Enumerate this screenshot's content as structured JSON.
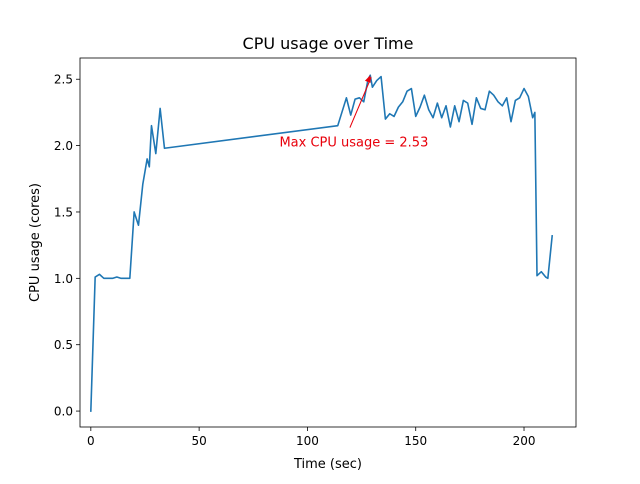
{
  "chart_data": {
    "type": "line",
    "title": "CPU usage over Time",
    "xlabel": "Time (sec)",
    "ylabel": "CPU usage (cores)",
    "xlim": [
      -5,
      224
    ],
    "ylim": [
      -0.12,
      2.66
    ],
    "xticks": [
      0,
      50,
      100,
      150,
      200
    ],
    "yticks": [
      0.0,
      0.5,
      1.0,
      1.5,
      2.0,
      2.5
    ],
    "xtick_labels": [
      "0",
      "50",
      "100",
      "150",
      "200"
    ],
    "ytick_labels": [
      "0.0",
      "0.5",
      "1.0",
      "1.5",
      "2.0",
      "2.5"
    ],
    "grid": false,
    "series": [
      {
        "color": "#1f77b4",
        "x": [
          0,
          2,
          4,
          6,
          8,
          10,
          12,
          14,
          16,
          18,
          20,
          22,
          24,
          26,
          27,
          28,
          30,
          32,
          34,
          114,
          118,
          120,
          122,
          124,
          126,
          128,
          129,
          130,
          132,
          134,
          136,
          138,
          140,
          142,
          144,
          146,
          148,
          150,
          152,
          154,
          156,
          158,
          160,
          162,
          164,
          166,
          168,
          170,
          172,
          174,
          176,
          178,
          180,
          182,
          184,
          186,
          188,
          190,
          192,
          194,
          196,
          198,
          200,
          202,
          204,
          205,
          206,
          208,
          210,
          211,
          213
        ],
        "y": [
          0.0,
          1.01,
          1.03,
          1.0,
          1.0,
          1.0,
          1.01,
          1.0,
          1.0,
          1.0,
          1.5,
          1.4,
          1.71,
          1.9,
          1.84,
          2.15,
          1.94,
          2.28,
          1.98,
          2.15,
          2.36,
          2.23,
          2.35,
          2.36,
          2.33,
          2.5,
          2.53,
          2.44,
          2.49,
          2.52,
          2.2,
          2.24,
          2.22,
          2.29,
          2.33,
          2.41,
          2.43,
          2.22,
          2.29,
          2.38,
          2.27,
          2.21,
          2.32,
          2.21,
          2.3,
          2.14,
          2.3,
          2.18,
          2.34,
          2.32,
          2.16,
          2.36,
          2.28,
          2.27,
          2.41,
          2.38,
          2.33,
          2.3,
          2.36,
          2.18,
          2.34,
          2.36,
          2.43,
          2.37,
          2.21,
          2.25,
          1.02,
          1.05,
          1.01,
          1.0,
          1.32
        ]
      }
    ],
    "annotations": [
      {
        "text": "Max CPU usage = 2.53",
        "color": "#e8000b",
        "point": [
          129,
          2.53
        ],
        "text_anchor_data": [
          139,
          2.03
        ]
      }
    ]
  }
}
